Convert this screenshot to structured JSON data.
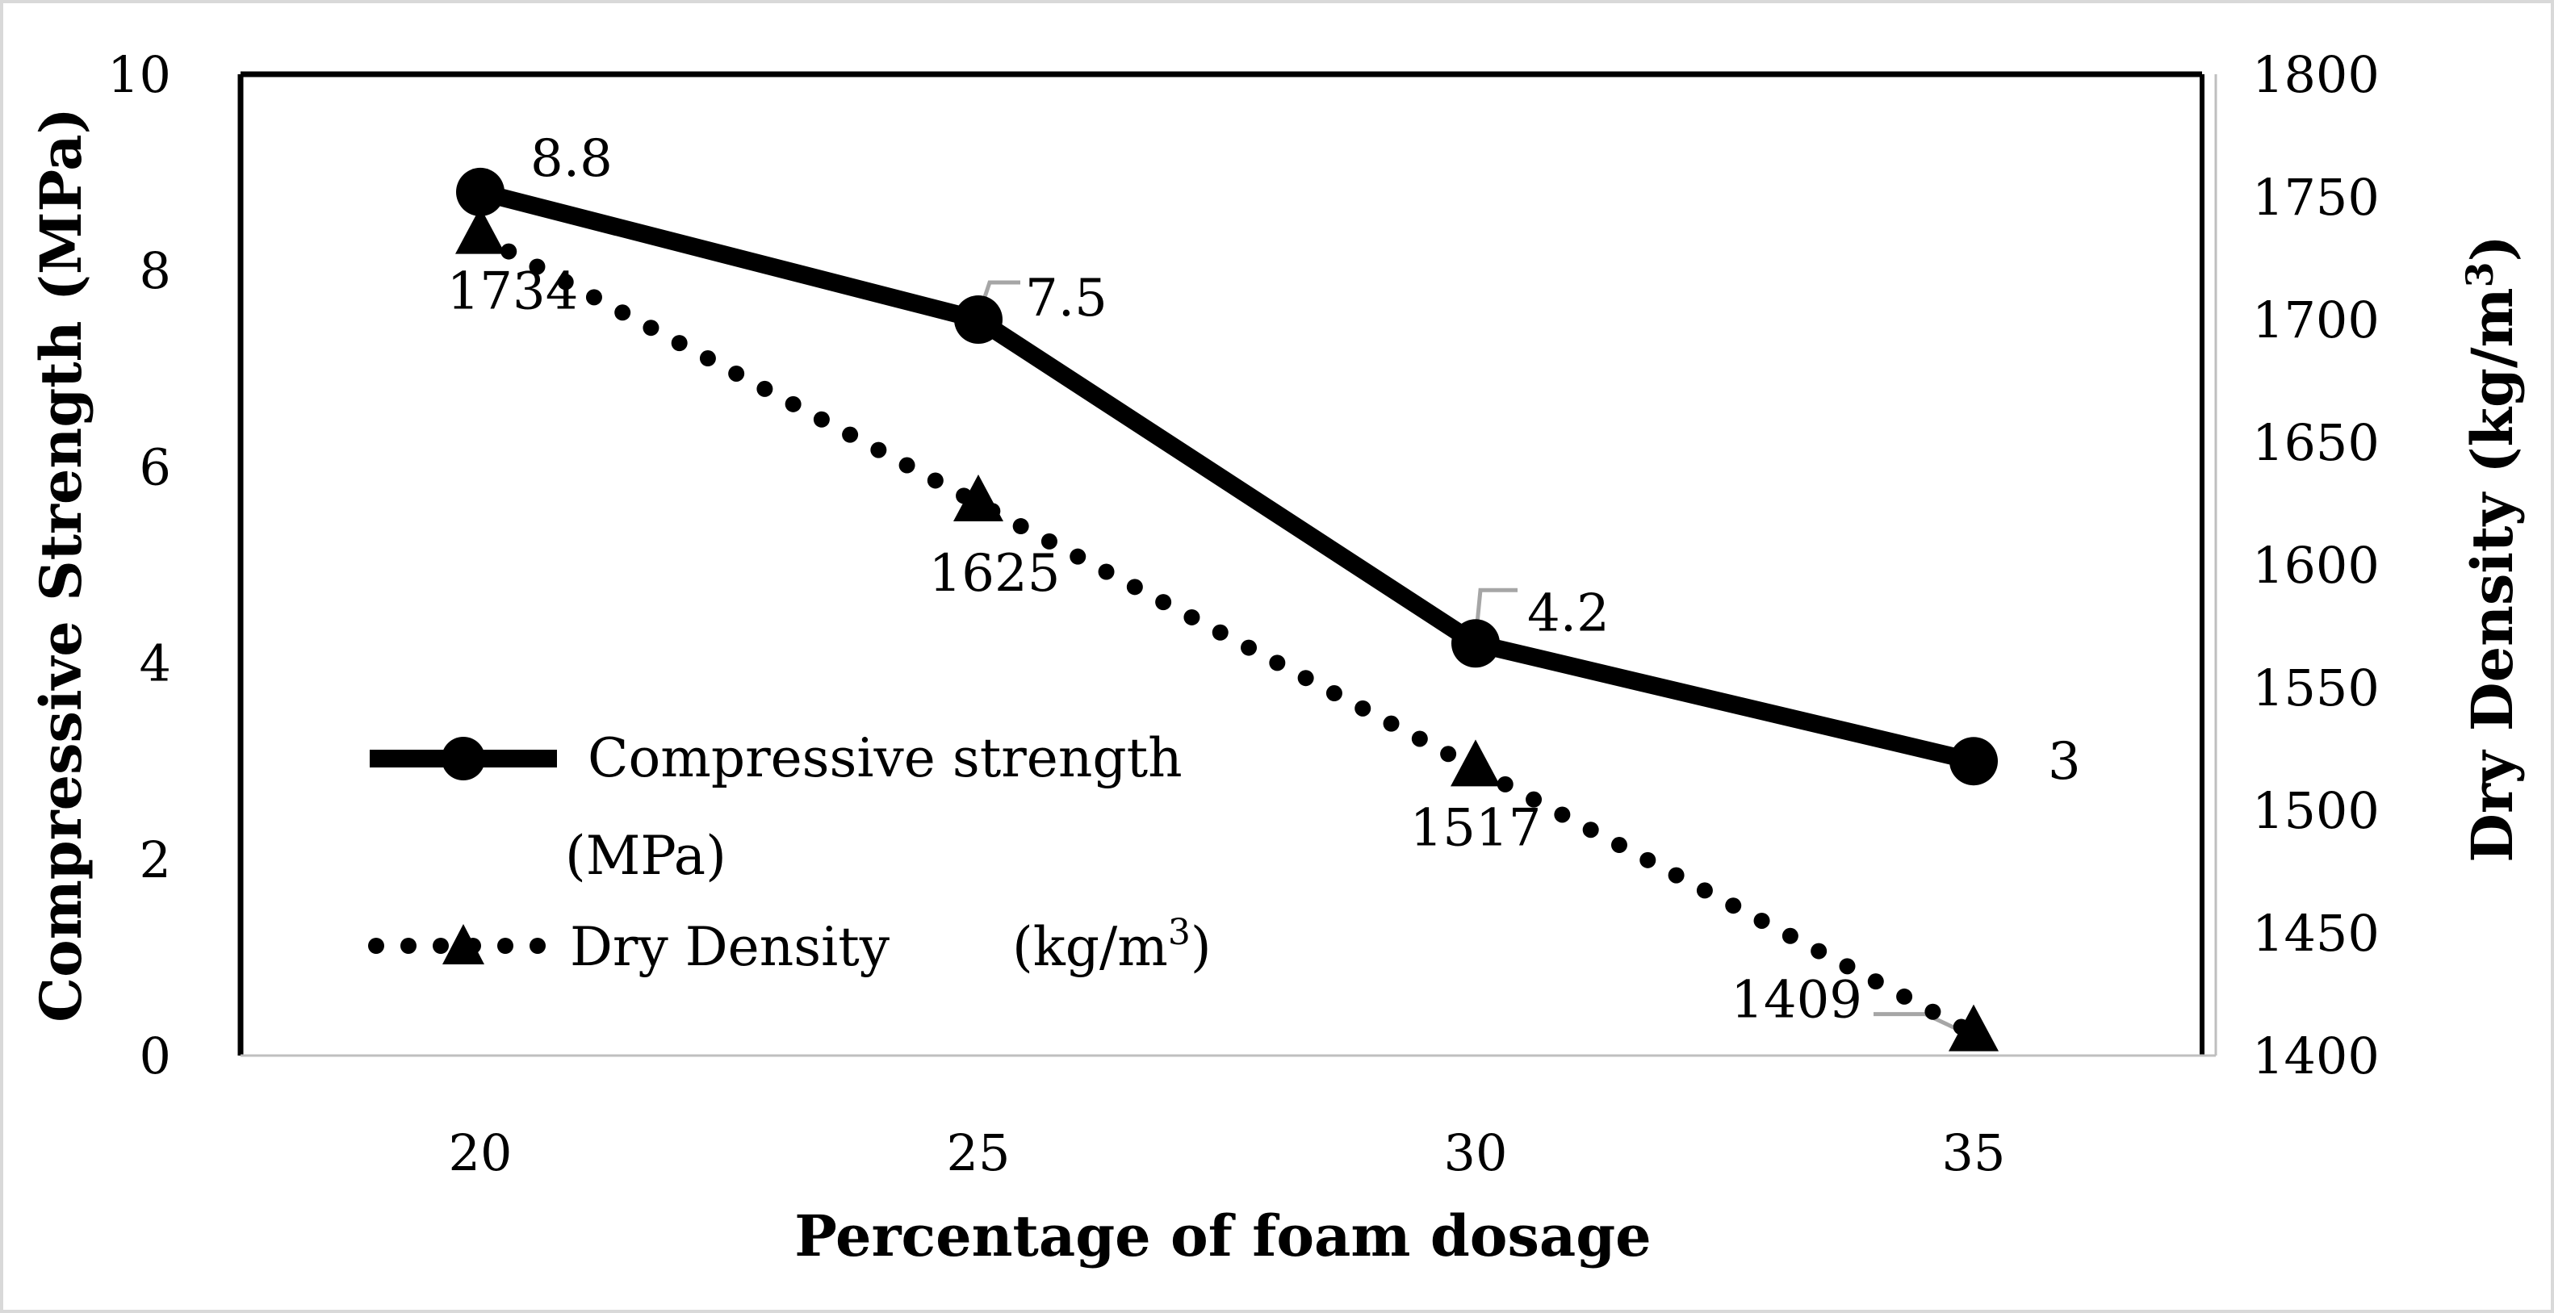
{
  "chart_data": {
    "type": "line",
    "title": "",
    "xlabel": "Percentage of foam dosage",
    "ylabel_left": "Compressive Strength (MPa)",
    "ylabel_right_main": "Dry Density (kg/m",
    "ylabel_right_sup": "3",
    "ylabel_right_end": ")",
    "categories": [
      "20",
      "25",
      "30",
      "35"
    ],
    "ylim_left": [
      0,
      10
    ],
    "yticks_left": [
      "0",
      "2",
      "4",
      "6",
      "8",
      "10"
    ],
    "ylim_right": [
      1400,
      1800
    ],
    "yticks_right": [
      "1400",
      "1450",
      "1500",
      "1550",
      "1600",
      "1650",
      "1700",
      "1750",
      "1800"
    ],
    "grid": false,
    "legend_position": "lower-left",
    "series": [
      {
        "name": "Compressive strength",
        "name_line2": "(MPa)",
        "axis": "left",
        "style": "solid",
        "marker": "circle",
        "color": "#000000",
        "values": [
          8.8,
          7.5,
          4.2,
          3
        ],
        "labels": [
          "8.8",
          "7.5",
          "4.2",
          "3"
        ]
      },
      {
        "name": "Dry Density",
        "unit_main": "(kg/m",
        "unit_sup": "3",
        "unit_end": ")",
        "axis": "right",
        "style": "dotted",
        "marker": "triangle",
        "color": "#000000",
        "values": [
          1734,
          1625,
          1517,
          1409
        ],
        "labels": [
          "1734",
          "1625",
          "1517",
          "1409"
        ]
      }
    ],
    "leader_line_color": "#a6a6a6"
  }
}
